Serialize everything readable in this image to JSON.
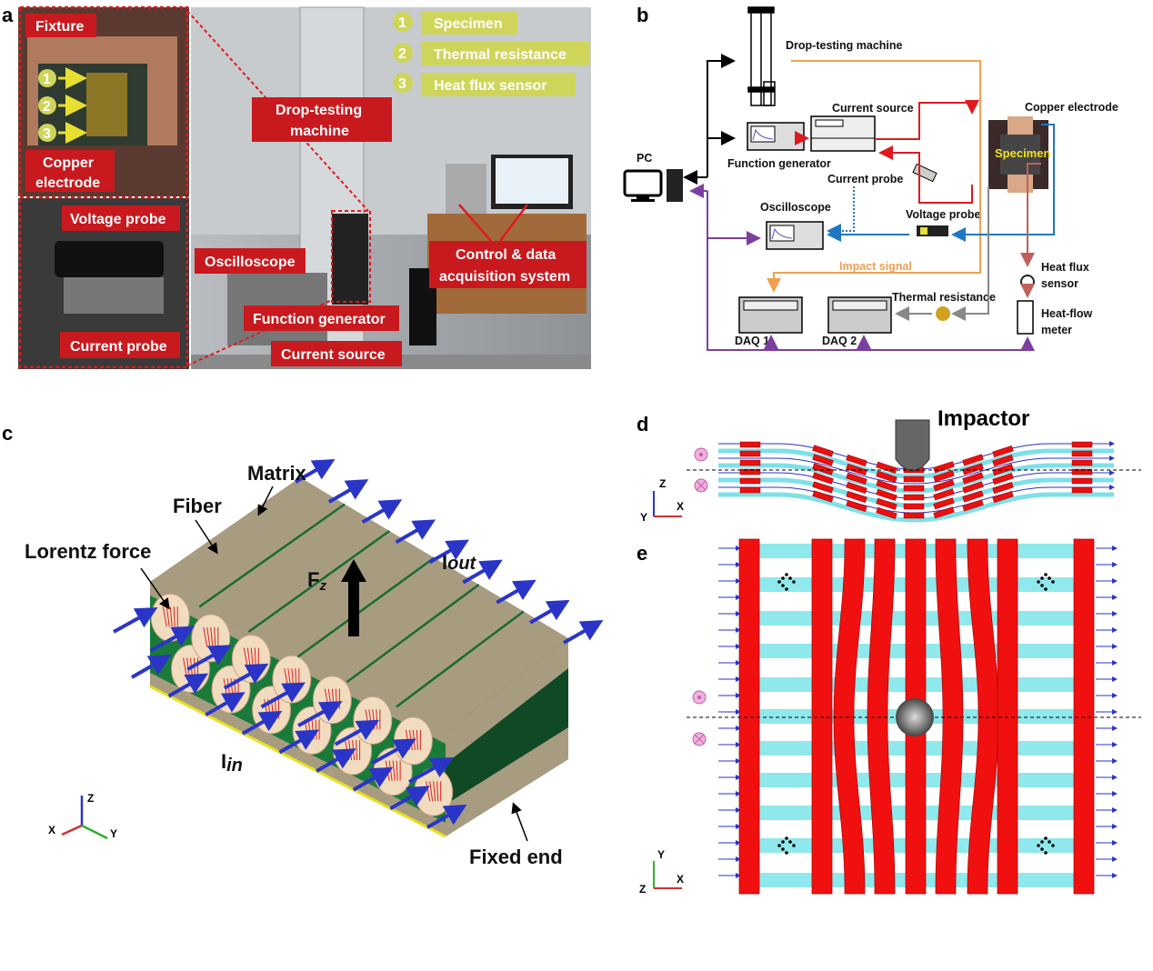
{
  "panels": {
    "a": "a",
    "b": "b",
    "c": "c",
    "d": "d",
    "e": "e"
  },
  "panel_a": {
    "inset_labels": {
      "fixture": "Fixture",
      "copper_electrode_1": "Copper",
      "copper_electrode_2": "electrode",
      "voltage_probe": "Voltage probe",
      "current_probe": "Current probe"
    },
    "inset_markers": [
      "1",
      "2",
      "3"
    ],
    "photo_labels": {
      "drop_testing_1": "Drop-testing",
      "drop_testing_2": "machine",
      "oscilloscope": "Oscilloscope",
      "function_generator": "Function generator",
      "current_source": "Current source",
      "control_1": "Control & data",
      "control_2": "acquisition system"
    },
    "legend": [
      {
        "num": "1",
        "label": "Specimen"
      },
      {
        "num": "2",
        "label": "Thermal resistance"
      },
      {
        "num": "3",
        "label": "Heat flux sensor"
      }
    ],
    "colors": {
      "label_bg": "#c8191e",
      "legend_bg": "#cfd55a"
    }
  },
  "panel_b": {
    "drop_testing_machine": "Drop-testing machine",
    "current_source": "Current source",
    "copper_electrode": "Copper electrode",
    "pc": "PC",
    "function_generator": "Function generator",
    "specimen": "Specimen",
    "current_probe": "Current probe",
    "oscilloscope": "Oscilloscope",
    "voltage_probe": "Voltage probe",
    "impact_signal": "Impact signal",
    "heat_flux_1": "Heat flux",
    "heat_flux_2": "sensor",
    "thermal_resistance": "Thermal resistance",
    "heat_flow_1": "Heat-flow",
    "heat_flow_2": "meter",
    "daq1": "DAQ 1",
    "daq2": "DAQ 2",
    "colors": {
      "control": "#000000",
      "current": "#e0191e",
      "voltage": "#1f77c4",
      "impact": "#f0a050",
      "daq": "#7b3fa0",
      "thermal": "#888888",
      "heat": "#c0605a"
    }
  },
  "panel_c": {
    "matrix": "Matrix",
    "fiber": "Fiber",
    "lorentz_force": "Lorentz force",
    "fz": "F",
    "fz_sub": "z",
    "iout": "I",
    "iout_sub": "out",
    "iin": "I",
    "iin_sub": "in",
    "fixed_end": "Fixed end",
    "axes": {
      "x": "X",
      "y": "Y",
      "z": "Z"
    }
  },
  "panel_d": {
    "impactor": "Impactor",
    "axes": {
      "x": "X",
      "y": "Y",
      "z": "Z"
    }
  },
  "panel_e": {
    "axes": {
      "x": "X",
      "y": "Y",
      "z": "Z"
    }
  }
}
